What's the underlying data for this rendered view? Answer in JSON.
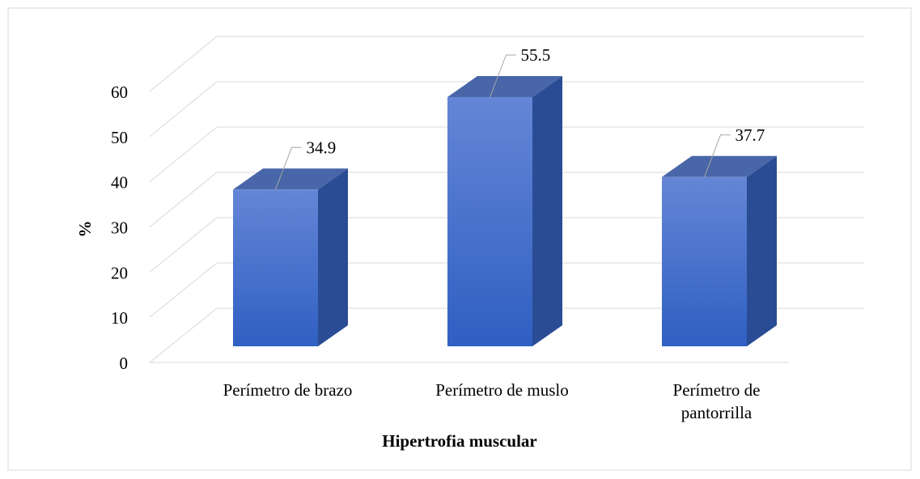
{
  "chart_data": {
    "type": "bar3d",
    "categories": [
      "Perímetro de brazo",
      "Perímetro de muslo",
      "Perímetro de pantorrilla"
    ],
    "values": [
      34.9,
      55.5,
      37.7
    ],
    "ylim": [
      0,
      60
    ],
    "yticks": [
      0,
      10,
      20,
      30,
      40,
      50,
      60
    ],
    "xlabel": "Hipertrofia muscular",
    "ylabel": "%",
    "color": "#4a72cc",
    "grid": true
  }
}
